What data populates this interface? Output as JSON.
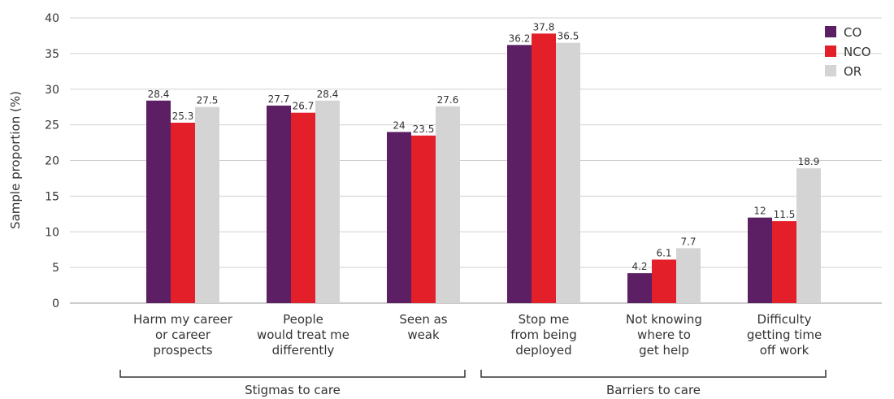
{
  "chart_data": {
    "type": "bar",
    "ylabel": "Sample proportion (%)",
    "ylim": [
      0,
      40
    ],
    "yticks": [
      0,
      5,
      10,
      15,
      20,
      25,
      30,
      35,
      40
    ],
    "grid": true,
    "legend_position": "top-right",
    "categories": [
      [
        "Harm my career",
        "or career",
        "prospects"
      ],
      [
        "People",
        "would treat me",
        "differently"
      ],
      [
        "Seen as",
        "weak"
      ],
      [
        "Stop me",
        "from being",
        "deployed"
      ],
      [
        "Not knowing",
        "where to",
        "get help"
      ],
      [
        "Difficulty",
        "getting time",
        "off work"
      ]
    ],
    "groups": [
      {
        "label": "Stigmas to care",
        "from": 0,
        "to": 2
      },
      {
        "label": "Barriers to care",
        "from": 3,
        "to": 5
      }
    ],
    "series": [
      {
        "name": "CO",
        "color": "#5c1f63",
        "values": [
          28.4,
          27.7,
          24,
          36.2,
          4.2,
          12
        ]
      },
      {
        "name": "NCO",
        "color": "#e3202a",
        "values": [
          25.3,
          26.7,
          23.5,
          37.8,
          6.1,
          11.5
        ]
      },
      {
        "name": "OR",
        "color": "#d4d4d4",
        "values": [
          27.5,
          28.4,
          27.6,
          36.5,
          7.7,
          18.9
        ]
      }
    ]
  }
}
